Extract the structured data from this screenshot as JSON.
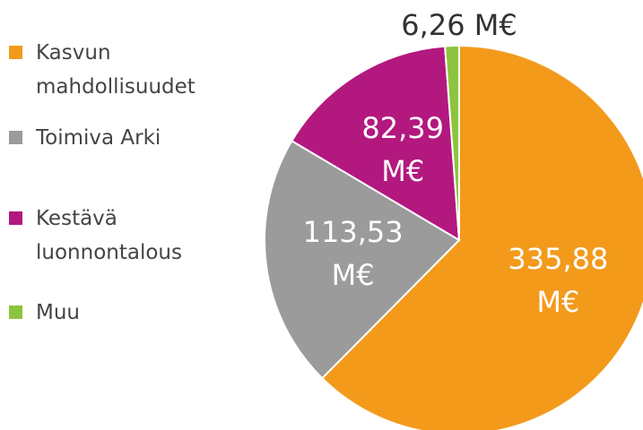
{
  "chart_data": {
    "type": "pie",
    "categories": [
      "Kasvun mahdollisuudet",
      "Toimiva Arki",
      "Kestävä luonnontalous",
      "Muu"
    ],
    "values": [
      335.88,
      113.53,
      82.39,
      6.26
    ],
    "value_labels": [
      "335,88 M€",
      "113,53 M€",
      "82,39 M€",
      "6,26 M€"
    ],
    "colors": [
      "#f39a1b",
      "#9b9b9b",
      "#b3187f",
      "#8cc43f"
    ],
    "legend": "left"
  }
}
